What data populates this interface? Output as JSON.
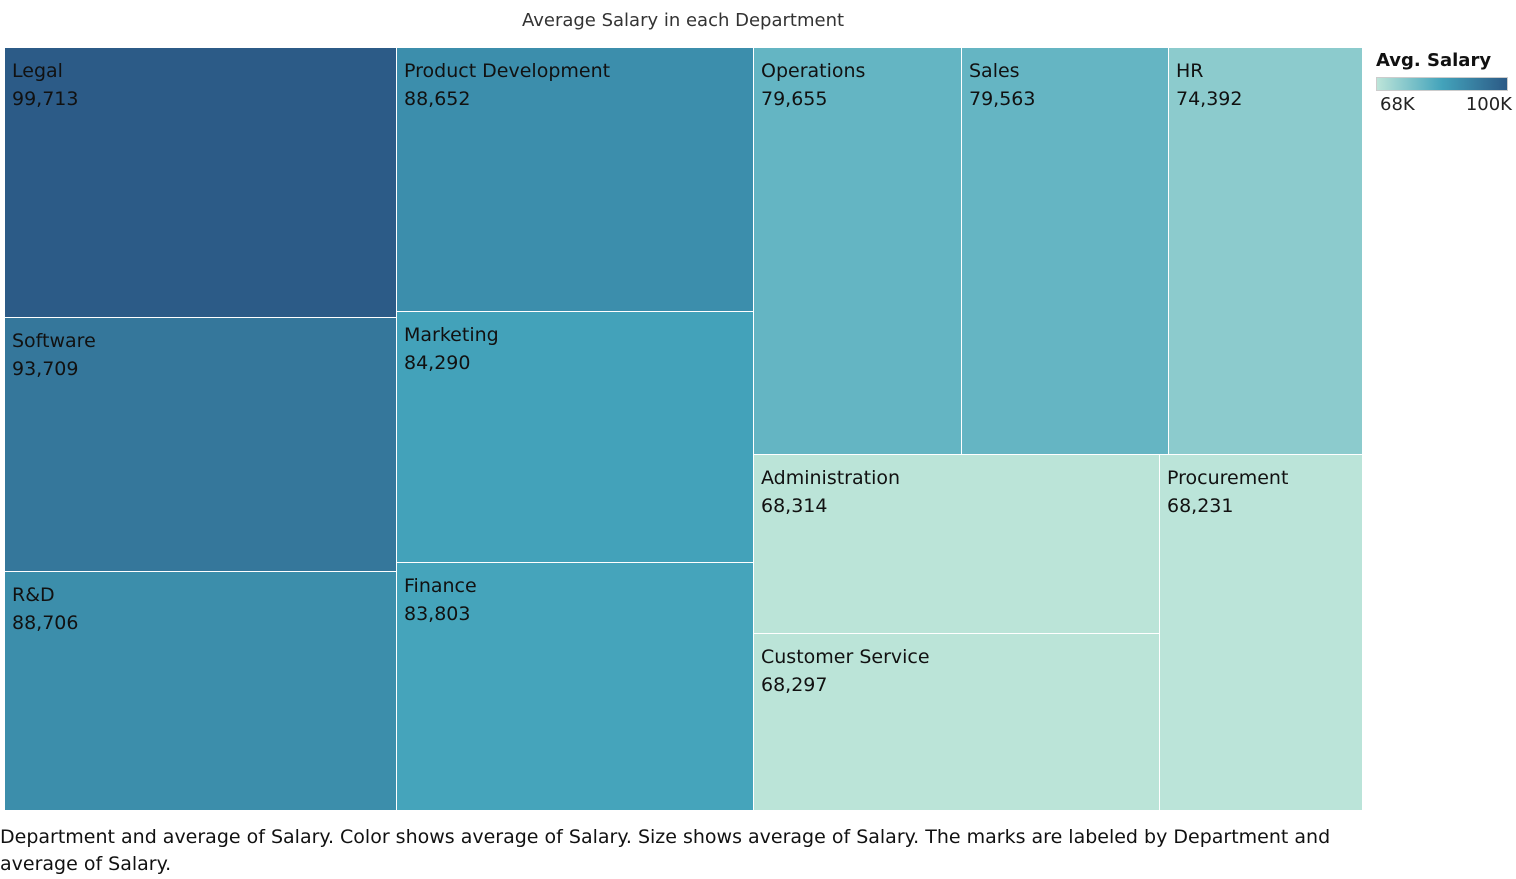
{
  "chart_data": {
    "type": "treemap",
    "title": "Average Salary in each Department",
    "value_format": "comma",
    "color_scale": {
      "title": "Avg. Salary",
      "min_label": "68K",
      "max_label": "100K",
      "min": 68000,
      "max": 100000,
      "colors": [
        "#bde5d9",
        "#43a3bb",
        "#2c5a86"
      ]
    },
    "departments": [
      {
        "name": "Legal",
        "value": 99713
      },
      {
        "name": "Software",
        "value": 93709
      },
      {
        "name": "R&D",
        "value": 88706
      },
      {
        "name": "Product Development",
        "value": 88652
      },
      {
        "name": "Marketing",
        "value": 84290
      },
      {
        "name": "Finance",
        "value": 83803
      },
      {
        "name": "Operations",
        "value": 79655
      },
      {
        "name": "Sales",
        "value": 79563
      },
      {
        "name": "HR",
        "value": 74392
      },
      {
        "name": "Administration",
        "value": 68314
      },
      {
        "name": "Customer Service",
        "value": 68297
      },
      {
        "name": "Procurement",
        "value": 68231
      }
    ]
  },
  "caption": "Department and average of Salary.  Color shows average of Salary.  Size shows average of Salary.  The marks are labeled by Department and average of Salary."
}
